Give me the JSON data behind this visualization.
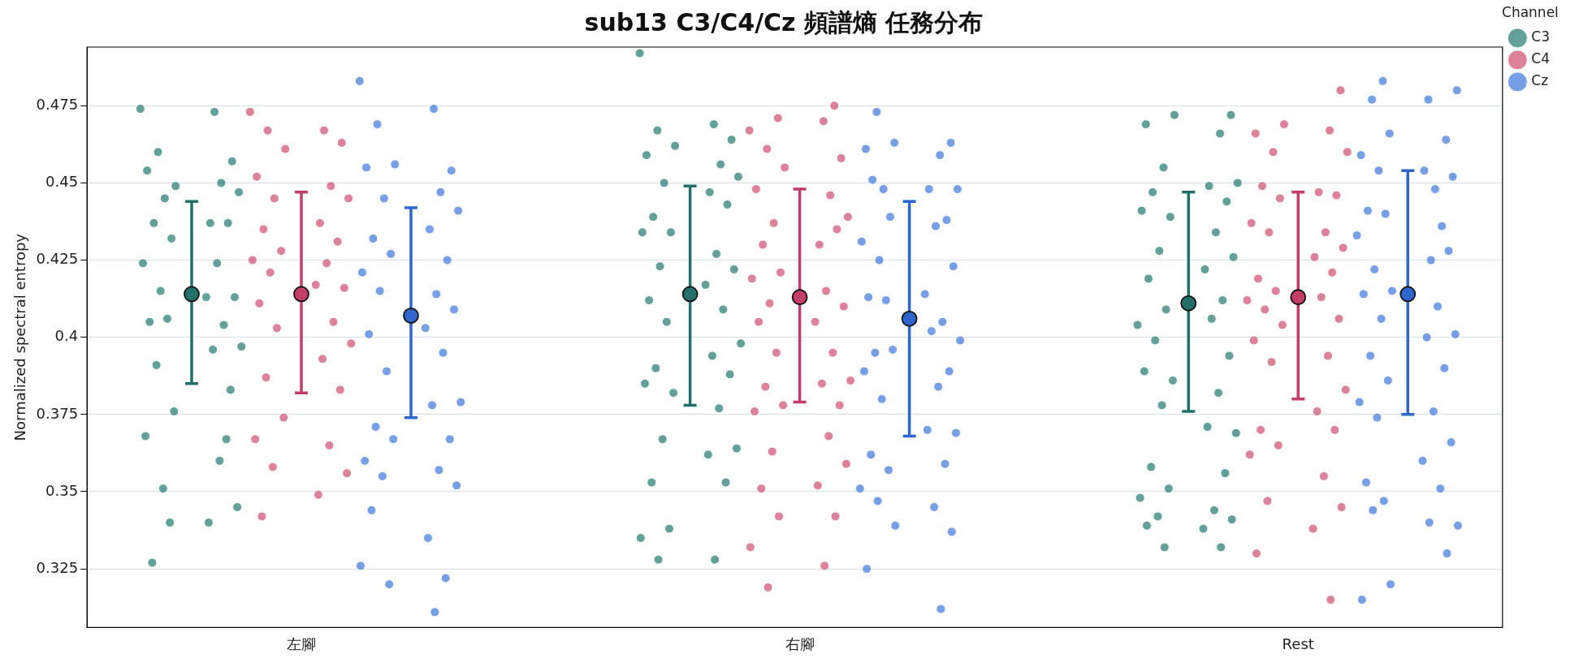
{
  "chart_data": {
    "type": "scatter",
    "title": "sub13 C3/C4/Cz 頻譜熵 任務分布",
    "ylabel": "Normalized spectral entropy",
    "legend_title": "Channel",
    "legend": "top right",
    "grid": "y",
    "marker": "circle",
    "categories": [
      "左腳",
      "右腳",
      "Rest"
    ],
    "ylim": [
      0.306,
      0.494
    ],
    "yticks": [
      0.325,
      0.35,
      0.375,
      0.4,
      0.425,
      0.45,
      0.475
    ],
    "series": [
      {
        "name": "C3",
        "color": "#2e8077",
        "x": [
          "左腳",
          "左腳",
          "左腳",
          "左腳",
          "左腳",
          "左腳",
          "左腳",
          "左腳",
          "左腳",
          "左腳",
          "左腳",
          "左腳",
          "左腳",
          "左腳",
          "左腳",
          "左腳",
          "左腳",
          "左腳",
          "左腳",
          "左腳",
          "左腳",
          "左腳",
          "左腳",
          "左腳",
          "左腳",
          "左腳",
          "左腳",
          "左腳",
          "左腳",
          "左腳",
          "左腳",
          "左腳",
          "左腳",
          "左腳",
          "右腳",
          "右腳",
          "右腳",
          "右腳",
          "右腳",
          "右腳",
          "右腳",
          "右腳",
          "右腳",
          "右腳",
          "右腳",
          "右腳",
          "右腳",
          "右腳",
          "右腳",
          "右腳",
          "右腳",
          "右腳",
          "右腳",
          "右腳",
          "右腳",
          "右腳",
          "右腳",
          "右腳",
          "右腳",
          "右腳",
          "右腳",
          "右腳",
          "右腳",
          "右腳",
          "右腳",
          "右腳",
          "右腳",
          "右腳",
          "右腳",
          "右腳",
          "右腳",
          "Rest",
          "Rest",
          "Rest",
          "Rest",
          "Rest",
          "Rest",
          "Rest",
          "Rest",
          "Rest",
          "Rest",
          "Rest",
          "Rest",
          "Rest",
          "Rest",
          "Rest",
          "Rest",
          "Rest",
          "Rest",
          "Rest",
          "Rest",
          "Rest",
          "Rest",
          "Rest",
          "Rest",
          "Rest",
          "Rest",
          "Rest",
          "Rest",
          "Rest",
          "Rest",
          "Rest",
          "Rest",
          "Rest",
          "Rest",
          "Rest",
          "Rest",
          "Rest",
          "Rest",
          "Rest"
        ],
        "values": [
          0.474,
          0.473,
          0.46,
          0.457,
          0.449,
          0.454,
          0.45,
          0.445,
          0.447,
          0.437,
          0.437,
          0.437,
          0.432,
          0.424,
          0.424,
          0.415,
          0.413,
          0.413,
          0.405,
          0.404,
          0.406,
          0.397,
          0.396,
          0.391,
          0.383,
          0.376,
          0.368,
          0.36,
          0.351,
          0.345,
          0.34,
          0.327,
          0.367,
          0.34,
          0.492,
          0.469,
          0.467,
          0.464,
          0.462,
          0.459,
          0.456,
          0.45,
          0.452,
          0.447,
          0.439,
          0.443,
          0.434,
          0.434,
          0.427,
          0.423,
          0.422,
          0.417,
          0.412,
          0.409,
          0.405,
          0.398,
          0.394,
          0.39,
          0.388,
          0.382,
          0.385,
          0.377,
          0.367,
          0.364,
          0.362,
          0.353,
          0.353,
          0.338,
          0.335,
          0.328,
          0.328,
          0.472,
          0.472,
          0.469,
          0.466,
          0.455,
          0.45,
          0.449,
          0.447,
          0.444,
          0.439,
          0.441,
          0.434,
          0.428,
          0.426,
          0.422,
          0.419,
          0.412,
          0.409,
          0.404,
          0.406,
          0.399,
          0.394,
          0.386,
          0.389,
          0.382,
          0.378,
          0.369,
          0.371,
          0.358,
          0.356,
          0.351,
          0.348,
          0.344,
          0.342,
          0.341,
          0.338,
          0.339,
          0.332,
          0.332
        ]
      },
      {
        "name": "C4",
        "color": "#d05a7a",
        "x": [
          "左腳",
          "左腳",
          "左腳",
          "左腳",
          "左腳",
          "左腳",
          "左腳",
          "左腳",
          "左腳",
          "左腳",
          "左腳",
          "左腳",
          "左腳",
          "左腳",
          "左腳",
          "左腳",
          "左腳",
          "左腳",
          "左腳",
          "左腳",
          "左腳",
          "左腳",
          "左腳",
          "左腳",
          "左腳",
          "左腳",
          "左腳",
          "左腳",
          "左腳",
          "左腳",
          "左腳",
          "左腳",
          "右腳",
          "右腳",
          "右腳",
          "右腳",
          "右腳",
          "右腳",
          "右腳",
          "右腳",
          "右腳",
          "右腳",
          "右腳",
          "右腳",
          "右腳",
          "右腳",
          "右腳",
          "右腳",
          "右腳",
          "右腳",
          "右腳",
          "右腳",
          "右腳",
          "右腳",
          "右腳",
          "右腳",
          "右腳",
          "右腳",
          "右腳",
          "右腳",
          "右腳",
          "右腳",
          "右腳",
          "右腳",
          "右腳",
          "右腳",
          "右腳",
          "右腳",
          "右腳",
          "右腳",
          "右腳",
          "Rest",
          "Rest",
          "Rest",
          "Rest",
          "Rest",
          "Rest",
          "Rest",
          "Rest",
          "Rest",
          "Rest",
          "Rest",
          "Rest",
          "Rest",
          "Rest",
          "Rest",
          "Rest",
          "Rest",
          "Rest",
          "Rest",
          "Rest",
          "Rest",
          "Rest",
          "Rest",
          "Rest",
          "Rest",
          "Rest",
          "Rest",
          "Rest",
          "Rest",
          "Rest",
          "Rest",
          "Rest",
          "Rest",
          "Rest",
          "Rest",
          "Rest",
          "Rest",
          "Rest"
        ],
        "values": [
          0.473,
          0.467,
          0.467,
          0.463,
          0.461,
          0.452,
          0.449,
          0.445,
          0.445,
          0.437,
          0.435,
          0.431,
          0.428,
          0.425,
          0.424,
          0.421,
          0.416,
          0.417,
          0.411,
          0.405,
          0.403,
          0.398,
          0.393,
          0.387,
          0.383,
          0.374,
          0.367,
          0.365,
          0.358,
          0.356,
          0.349,
          0.342,
          0.475,
          0.471,
          0.467,
          0.47,
          0.461,
          0.458,
          0.455,
          0.448,
          0.446,
          0.437,
          0.439,
          0.43,
          0.43,
          0.435,
          0.421,
          0.419,
          0.415,
          0.411,
          0.41,
          0.405,
          0.405,
          0.395,
          0.395,
          0.386,
          0.385,
          0.384,
          0.378,
          0.378,
          0.376,
          0.368,
          0.363,
          0.359,
          0.352,
          0.351,
          0.342,
          0.342,
          0.332,
          0.326,
          0.319,
          0.48,
          0.469,
          0.466,
          0.467,
          0.46,
          0.46,
          0.447,
          0.449,
          0.446,
          0.445,
          0.437,
          0.434,
          0.434,
          0.429,
          0.426,
          0.419,
          0.421,
          0.415,
          0.412,
          0.413,
          0.409,
          0.406,
          0.404,
          0.399,
          0.394,
          0.392,
          0.383,
          0.376,
          0.37,
          0.37,
          0.365,
          0.362,
          0.355,
          0.347,
          0.345,
          0.338,
          0.33,
          0.315
        ]
      },
      {
        "name": "Cz",
        "color": "#4a7fdc",
        "x": [
          "左腳",
          "左腳",
          "左腳",
          "左腳",
          "左腳",
          "左腳",
          "左腳",
          "左腳",
          "左腳",
          "左腳",
          "左腳",
          "左腳",
          "左腳",
          "左腳",
          "左腳",
          "左腳",
          "左腳",
          "左腳",
          "左腳",
          "左腳",
          "左腳",
          "左腳",
          "左腳",
          "左腳",
          "左腳",
          "左腳",
          "左腳",
          "左腳",
          "左腳",
          "左腳",
          "左腳",
          "左腳",
          "左腳",
          "左腳",
          "左腳",
          "左腳",
          "右腳",
          "右腳",
          "右腳",
          "右腳",
          "右腳",
          "右腳",
          "右腳",
          "右腳",
          "右腳",
          "右腳",
          "右腳",
          "右腳",
          "右腳",
          "右腳",
          "右腳",
          "右腳",
          "右腳",
          "右腳",
          "右腳",
          "右腳",
          "右腳",
          "右腳",
          "右腳",
          "右腳",
          "右腳",
          "右腳",
          "右腳",
          "右腳",
          "右腳",
          "右腳",
          "右腳",
          "右腳",
          "右腳",
          "右腳",
          "右腳",
          "右腳",
          "右腳",
          "右腳",
          "右腳",
          "Rest",
          "Rest",
          "Rest",
          "Rest",
          "Rest",
          "Rest",
          "Rest",
          "Rest",
          "Rest",
          "Rest",
          "Rest",
          "Rest",
          "Rest",
          "Rest",
          "Rest",
          "Rest",
          "Rest",
          "Rest",
          "Rest",
          "Rest",
          "Rest",
          "Rest",
          "Rest",
          "Rest",
          "Rest",
          "Rest",
          "Rest",
          "Rest",
          "Rest",
          "Rest",
          "Rest",
          "Rest",
          "Rest",
          "Rest",
          "Rest",
          "Rest",
          "Rest",
          "Rest",
          "Rest",
          "Rest",
          "Rest"
        ],
        "values": [
          0.483,
          0.474,
          0.469,
          0.454,
          0.456,
          0.455,
          0.447,
          0.445,
          0.441,
          0.435,
          0.432,
          0.425,
          0.427,
          0.421,
          0.414,
          0.415,
          0.409,
          0.403,
          0.401,
          0.395,
          0.389,
          0.379,
          0.378,
          0.371,
          0.367,
          0.367,
          0.36,
          0.357,
          0.355,
          0.352,
          0.335,
          0.344,
          0.322,
          0.32,
          0.326,
          0.311,
          0.473,
          0.463,
          0.463,
          0.461,
          0.459,
          0.448,
          0.448,
          0.448,
          0.451,
          0.438,
          0.439,
          0.431,
          0.436,
          0.425,
          0.423,
          0.414,
          0.413,
          0.405,
          0.412,
          0.399,
          0.402,
          0.395,
          0.389,
          0.396,
          0.389,
          0.384,
          0.38,
          0.369,
          0.37,
          0.362,
          0.359,
          0.357,
          0.351,
          0.345,
          0.347,
          0.337,
          0.339,
          0.325,
          0.312,
          0.483,
          0.48,
          0.477,
          0.477,
          0.464,
          0.466,
          0.459,
          0.448,
          0.454,
          0.452,
          0.454,
          0.441,
          0.436,
          0.44,
          0.433,
          0.425,
          0.422,
          0.428,
          0.415,
          0.414,
          0.41,
          0.406,
          0.401,
          0.4,
          0.394,
          0.39,
          0.386,
          0.379,
          0.376,
          0.374,
          0.366,
          0.36,
          0.353,
          0.351,
          0.347,
          0.339,
          0.34,
          0.344,
          0.33,
          0.32,
          0.315
        ]
      },
      {
        "color": "#23706a",
        "x": [
          "左腳",
          "右腳",
          "Rest"
        ],
        "values": [
          0.414,
          0.414,
          0.411
        ],
        "errors": [
          [
            0.385,
            0.444
          ],
          [
            0.378,
            0.449
          ],
          [
            0.376,
            0.447
          ]
        ]
      },
      {
        "color": "#c23e68",
        "x": [
          "左腳",
          "右腳",
          "Rest"
        ],
        "values": [
          0.414,
          0.413,
          0.413
        ],
        "errors": [
          [
            0.382,
            0.447
          ],
          [
            0.379,
            0.448
          ],
          [
            0.38,
            0.447
          ]
        ]
      },
      {
        "color": "#2f66cc",
        "x": [
          "左腳",
          "右腳",
          "Rest"
        ],
        "values": [
          0.407,
          0.406,
          0.414
        ],
        "errors": [
          [
            0.374,
            0.442
          ],
          [
            0.368,
            0.444
          ],
          [
            0.375,
            0.454
          ]
        ]
      }
    ]
  }
}
